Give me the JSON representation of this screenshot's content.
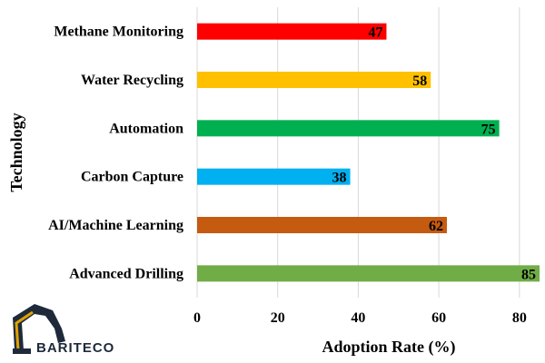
{
  "chart_data": {
    "type": "bar",
    "orientation": "horizontal",
    "categories": [
      "Methane Monitoring",
      "Water Recycling",
      "Automation",
      "Carbon Capture",
      "AI/Machine Learning",
      "Advanced Drilling"
    ],
    "values": [
      47,
      58,
      75,
      38,
      62,
      85
    ],
    "colors": [
      "#ff0000",
      "#ffc000",
      "#00b050",
      "#00b0f0",
      "#c55a11",
      "#70ad47"
    ],
    "xlabel": "Adoption Rate (%)",
    "ylabel": "Technology",
    "xlim": [
      0,
      85
    ],
    "xticks": [
      0,
      20,
      40,
      60,
      80
    ],
    "grid": "vertical",
    "data_labels": true
  },
  "logo": {
    "text": "BARITECO",
    "icon": "excavator-icon",
    "colors": {
      "primary": "#1e2a3a",
      "accent": "#e0a100"
    }
  }
}
